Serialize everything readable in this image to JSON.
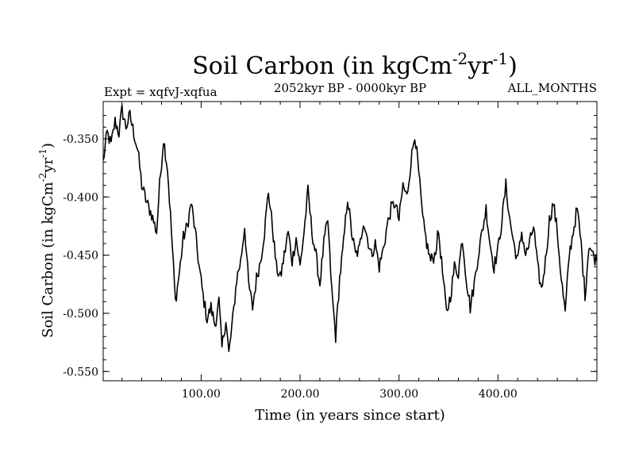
{
  "chart_data": {
    "type": "line",
    "title": "Soil Carbon (in kgCm",
    "title_units": {
      "exp1": "-2",
      "mid": "yr",
      "exp2": "-1",
      "close": ")"
    },
    "expt_label": "Expt = xqfvJ-xqfua",
    "period_label": "2052kyr BP - 0000kyr BP",
    "season_label": "ALL_MONTHS",
    "xlabel": "Time (in years since start)",
    "ylabel": "Soil Carbon (in kgCm",
    "ylabel_units": {
      "exp1": "-2",
      "mid": "yr",
      "exp2": "-1",
      "close": ")"
    },
    "xlim": [
      1,
      500
    ],
    "ylim": [
      -0.558,
      -0.318
    ],
    "xticks": [
      100,
      200,
      300,
      400
    ],
    "xtick_labels": [
      "100.00",
      "200.00",
      "300.00",
      "400.00"
    ],
    "yticks": [
      -0.35,
      -0.4,
      -0.45,
      -0.5,
      -0.55
    ],
    "ytick_labels": [
      "-0.350",
      "-0.400",
      "-0.450",
      "-0.500",
      "-0.550"
    ],
    "series": [
      {
        "name": "Soil Carbon",
        "color": "#000000",
        "anchors": [
          [
            1,
            -0.37
          ],
          [
            5,
            -0.345
          ],
          [
            9,
            -0.355
          ],
          [
            13,
            -0.335
          ],
          [
            17,
            -0.345
          ],
          [
            20,
            -0.325
          ],
          [
            24,
            -0.34
          ],
          [
            28,
            -0.33
          ],
          [
            32,
            -0.345
          ],
          [
            36,
            -0.36
          ],
          [
            40,
            -0.39
          ],
          [
            45,
            -0.405
          ],
          [
            50,
            -0.415
          ],
          [
            55,
            -0.43
          ],
          [
            58,
            -0.39
          ],
          [
            62,
            -0.35
          ],
          [
            66,
            -0.375
          ],
          [
            70,
            -0.43
          ],
          [
            74,
            -0.49
          ],
          [
            78,
            -0.465
          ],
          [
            82,
            -0.435
          ],
          [
            86,
            -0.425
          ],
          [
            90,
            -0.405
          ],
          [
            94,
            -0.43
          ],
          [
            98,
            -0.46
          ],
          [
            102,
            -0.485
          ],
          [
            106,
            -0.505
          ],
          [
            110,
            -0.495
          ],
          [
            114,
            -0.51
          ],
          [
            118,
            -0.49
          ],
          [
            121,
            -0.53
          ],
          [
            125,
            -0.505
          ],
          [
            128,
            -0.535
          ],
          [
            132,
            -0.505
          ],
          [
            136,
            -0.47
          ],
          [
            140,
            -0.455
          ],
          [
            144,
            -0.425
          ],
          [
            148,
            -0.475
          ],
          [
            152,
            -0.495
          ],
          [
            156,
            -0.47
          ],
          [
            160,
            -0.455
          ],
          [
            164,
            -0.43
          ],
          [
            168,
            -0.395
          ],
          [
            172,
            -0.425
          ],
          [
            176,
            -0.46
          ],
          [
            180,
            -0.47
          ],
          [
            184,
            -0.45
          ],
          [
            188,
            -0.43
          ],
          [
            192,
            -0.455
          ],
          [
            196,
            -0.435
          ],
          [
            200,
            -0.46
          ],
          [
            204,
            -0.43
          ],
          [
            208,
            -0.395
          ],
          [
            212,
            -0.43
          ],
          [
            216,
            -0.45
          ],
          [
            220,
            -0.475
          ],
          [
            224,
            -0.44
          ],
          [
            228,
            -0.42
          ],
          [
            232,
            -0.48
          ],
          [
            236,
            -0.52
          ],
          [
            240,
            -0.47
          ],
          [
            244,
            -0.44
          ],
          [
            248,
            -0.4
          ],
          [
            252,
            -0.43
          ],
          [
            256,
            -0.45
          ],
          [
            260,
            -0.445
          ],
          [
            264,
            -0.42
          ],
          [
            268,
            -0.435
          ],
          [
            272,
            -0.45
          ],
          [
            276,
            -0.44
          ],
          [
            280,
            -0.46
          ],
          [
            284,
            -0.445
          ],
          [
            288,
            -0.425
          ],
          [
            292,
            -0.41
          ],
          [
            296,
            -0.405
          ],
          [
            300,
            -0.42
          ],
          [
            304,
            -0.39
          ],
          [
            308,
            -0.4
          ],
          [
            312,
            -0.37
          ],
          [
            316,
            -0.345
          ],
          [
            320,
            -0.38
          ],
          [
            324,
            -0.42
          ],
          [
            328,
            -0.44
          ],
          [
            332,
            -0.455
          ],
          [
            336,
            -0.45
          ],
          [
            340,
            -0.43
          ],
          [
            344,
            -0.465
          ],
          [
            348,
            -0.5
          ],
          [
            352,
            -0.485
          ],
          [
            356,
            -0.46
          ],
          [
            360,
            -0.465
          ],
          [
            364,
            -0.435
          ],
          [
            368,
            -0.47
          ],
          [
            372,
            -0.495
          ],
          [
            376,
            -0.475
          ],
          [
            380,
            -0.45
          ],
          [
            384,
            -0.43
          ],
          [
            388,
            -0.41
          ],
          [
            392,
            -0.44
          ],
          [
            396,
            -0.46
          ],
          [
            400,
            -0.445
          ],
          [
            404,
            -0.42
          ],
          [
            408,
            -0.39
          ],
          [
            412,
            -0.42
          ],
          [
            416,
            -0.44
          ],
          [
            420,
            -0.455
          ],
          [
            424,
            -0.43
          ],
          [
            428,
            -0.45
          ],
          [
            432,
            -0.44
          ],
          [
            436,
            -0.425
          ],
          [
            440,
            -0.46
          ],
          [
            444,
            -0.48
          ],
          [
            448,
            -0.455
          ],
          [
            452,
            -0.42
          ],
          [
            456,
            -0.405
          ],
          [
            460,
            -0.43
          ],
          [
            464,
            -0.47
          ],
          [
            468,
            -0.5
          ],
          [
            472,
            -0.45
          ],
          [
            476,
            -0.43
          ],
          [
            480,
            -0.41
          ],
          [
            484,
            -0.44
          ],
          [
            488,
            -0.485
          ],
          [
            492,
            -0.44
          ],
          [
            496,
            -0.45
          ],
          [
            500,
            -0.455
          ]
        ]
      }
    ]
  }
}
